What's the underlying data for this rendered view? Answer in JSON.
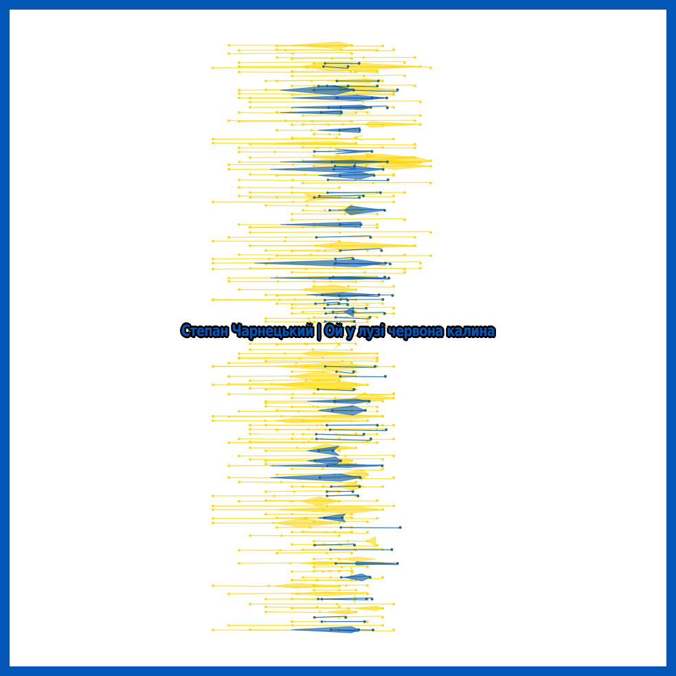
{
  "title": "Степан Чарнецький | Ой у лузі червона калина",
  "colors": {
    "frame": "#0057b8",
    "background": "#ffffff",
    "yellow": "#ffd700",
    "blue": "#0057b8",
    "dot_dark": "#2f6b6b"
  }
}
